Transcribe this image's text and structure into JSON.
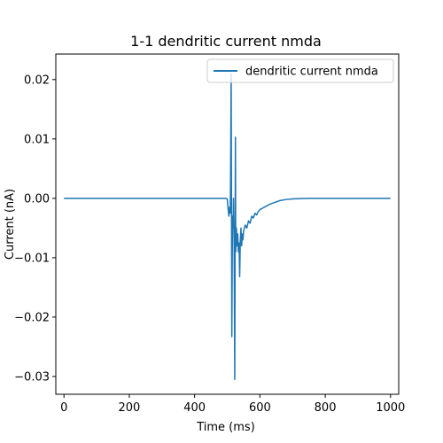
{
  "chart_data": {
    "type": "line",
    "title": "1-1 dendritic current nmda",
    "xlabel": "Time (ms)",
    "ylabel": "Current (nA)",
    "xlim": [
      -25,
      1025
    ],
    "ylim": [
      -0.033,
      0.0243
    ],
    "xticks": [
      0,
      200,
      400,
      600,
      800,
      1000
    ],
    "xtick_labels": [
      "0",
      "200",
      "400",
      "600",
      "800",
      "1000"
    ],
    "yticks": [
      0.02,
      0.01,
      0.0,
      -0.01,
      -0.02,
      -0.03
    ],
    "ytick_labels": [
      "0.02",
      "0.01",
      "0.00",
      "−0.01",
      "−0.02",
      "−0.03"
    ],
    "grid": false,
    "legend_position": "top-right",
    "series": [
      {
        "name": "dendritic current nmda",
        "color": "#1f77b4",
        "x": [
          0,
          100,
          200,
          300,
          400,
          495,
          500,
          503,
          505,
          507,
          509,
          510,
          512,
          514,
          516,
          518,
          519,
          521,
          523,
          525,
          526,
          528,
          530,
          532,
          534,
          536,
          538,
          540,
          542,
          544,
          546,
          548,
          550,
          555,
          560,
          565,
          570,
          575,
          580,
          585,
          590,
          595,
          600,
          610,
          620,
          630,
          640,
          650,
          660,
          680,
          700,
          750,
          800,
          850,
          900,
          1000
        ],
        "y": [
          0,
          0,
          0,
          0,
          0,
          0,
          -0.0001,
          -0.002,
          -0.003,
          -0.0015,
          -0.0025,
          0.002,
          0.021,
          -0.0233,
          -0.003,
          -0.005,
          0.0,
          -0.008,
          -0.0305,
          0.0103,
          -0.009,
          -0.005,
          -0.008,
          -0.006,
          -0.009,
          -0.0075,
          -0.0132,
          -0.007,
          -0.005,
          -0.008,
          -0.006,
          -0.007,
          -0.0055,
          -0.0045,
          -0.005,
          -0.0038,
          -0.0042,
          -0.003,
          -0.0033,
          -0.0025,
          -0.0028,
          -0.0022,
          -0.0019,
          -0.0016,
          -0.0013,
          -0.001,
          -0.0008,
          -0.0006,
          -0.0004,
          -0.0002,
          -0.0001,
          0,
          0,
          0,
          0,
          0
        ]
      }
    ]
  }
}
